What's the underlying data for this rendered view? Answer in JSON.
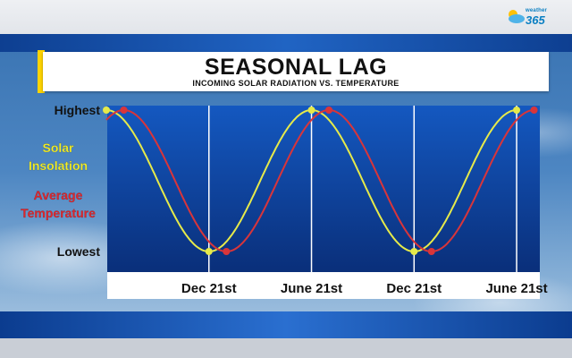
{
  "brand": {
    "small": "weather",
    "big": "365"
  },
  "title": "SEASONAL LAG",
  "subtitle": "INCOMING SOLAR RADIATION VS. TEMPERATURE",
  "colors": {
    "solar": "#e6ea4a",
    "temperature": "#d9353a",
    "panel": "#0f4aa8",
    "panelBottom": "#0a2f7a",
    "axisLabel": "#111111",
    "solarLabel": "#f2ee2a",
    "tempLabel": "#e3262b"
  },
  "chart_data": {
    "type": "line",
    "y_labels": {
      "high": "Highest",
      "low": "Lowest"
    },
    "x_labels": [
      {
        "text": "Dec 21st",
        "at": 0.5
      },
      {
        "text": "June 21st",
        "at": 1.0
      },
      {
        "text": "Dec 21st",
        "at": 1.5
      },
      {
        "text": "June 21st",
        "at": 2.0
      }
    ],
    "x_range": [
      0,
      2.1
    ],
    "y_range": [
      0,
      1
    ],
    "series": [
      {
        "name": "Solar Insolation",
        "color": "#e6ea4a",
        "phase_years": 0.0,
        "peaks_at": [
          0,
          1,
          2
        ],
        "troughs_at": [
          0.5,
          1.5
        ]
      },
      {
        "name": "Average Temperature",
        "color": "#d9353a",
        "phase_years": 0.085,
        "peaks_at": [
          0.085,
          1.085,
          2.085
        ],
        "troughs_at": [
          0.585,
          1.585
        ]
      }
    ],
    "series_label_lines": [
      [
        "Solar",
        "Insolation"
      ],
      [
        "Average",
        "Temperature"
      ]
    ],
    "vertical_lines_at": [
      0.5,
      1.0,
      1.5,
      2.0
    ],
    "grid": false,
    "legend": "left"
  }
}
